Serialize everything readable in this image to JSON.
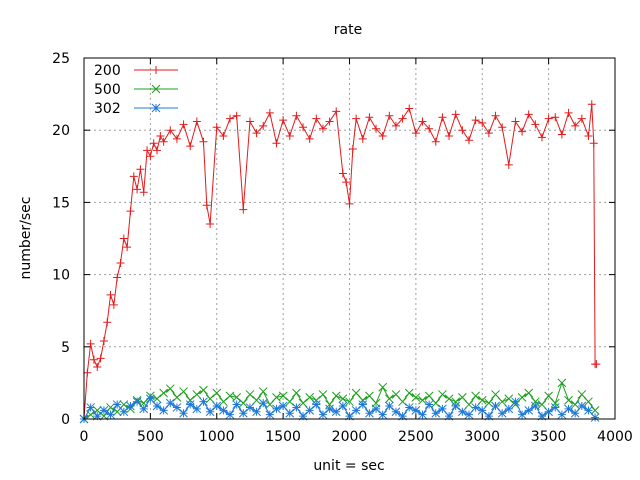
{
  "chart_data": {
    "type": "line",
    "title": "rate",
    "xlabel": "unit = sec",
    "ylabel": "number/sec",
    "xlim": [
      0,
      4000
    ],
    "ylim": [
      0,
      25
    ],
    "x_ticks": [
      0,
      500,
      1000,
      1500,
      2000,
      2500,
      3000,
      3500,
      4000
    ],
    "y_ticks": [
      0,
      5,
      10,
      15,
      20,
      25
    ],
    "grid": true,
    "legend_position": "top-left",
    "series": [
      {
        "name": "200",
        "color": "#e41a1c",
        "marker": "plus",
        "x": [
          0,
          25,
          50,
          75,
          100,
          125,
          150,
          175,
          200,
          225,
          250,
          275,
          300,
          325,
          350,
          375,
          400,
          425,
          450,
          475,
          500,
          525,
          550,
          575,
          600,
          650,
          700,
          750,
          800,
          850,
          900,
          925,
          950,
          1000,
          1050,
          1100,
          1150,
          1200,
          1250,
          1300,
          1350,
          1400,
          1450,
          1500,
          1550,
          1600,
          1650,
          1700,
          1750,
          1800,
          1850,
          1900,
          1950,
          1975,
          2000,
          2025,
          2050,
          2100,
          2150,
          2200,
          2250,
          2300,
          2350,
          2400,
          2450,
          2500,
          2550,
          2600,
          2650,
          2700,
          2750,
          2800,
          2850,
          2900,
          2950,
          3000,
          3050,
          3100,
          3150,
          3200,
          3250,
          3300,
          3350,
          3400,
          3450,
          3500,
          3550,
          3600,
          3650,
          3700,
          3750,
          3800,
          3825,
          3840,
          3850,
          3860
        ],
        "values": [
          0,
          3.2,
          5.2,
          4.1,
          3.6,
          4.2,
          5.4,
          6.7,
          8.6,
          7.9,
          9.8,
          10.8,
          12.5,
          11.9,
          14.4,
          16.8,
          15.9,
          17.3,
          15.7,
          18.6,
          18.2,
          19.1,
          18.6,
          19.6,
          19.2,
          20.0,
          19.4,
          20.4,
          18.9,
          20.6,
          19.2,
          14.8,
          13.5,
          20.2,
          19.6,
          20.8,
          21.0,
          14.5,
          20.6,
          19.8,
          20.3,
          21.2,
          19.1,
          20.7,
          19.6,
          21.0,
          20.2,
          19.4,
          20.8,
          20.1,
          20.6,
          21.3,
          17.0,
          16.4,
          14.9,
          18.7,
          20.8,
          19.4,
          20.9,
          20.1,
          19.6,
          21.0,
          20.3,
          20.8,
          21.5,
          19.8,
          20.6,
          20.1,
          19.2,
          20.9,
          19.6,
          21.1,
          20.0,
          19.3,
          20.7,
          20.5,
          19.8,
          21.0,
          20.2,
          17.6,
          20.6,
          19.9,
          21.1,
          20.4,
          19.5,
          20.8,
          20.9,
          19.7,
          21.2,
          20.3,
          20.8,
          19.6,
          21.8,
          19.1,
          3.8,
          3.8
        ]
      },
      {
        "name": "500",
        "color": "#1ca01c",
        "marker": "cross",
        "x": [
          0,
          50,
          100,
          150,
          200,
          250,
          300,
          350,
          400,
          450,
          500,
          550,
          600,
          650,
          700,
          750,
          800,
          850,
          900,
          950,
          1000,
          1050,
          1100,
          1150,
          1200,
          1250,
          1300,
          1350,
          1400,
          1450,
          1500,
          1550,
          1600,
          1650,
          1700,
          1750,
          1800,
          1850,
          1900,
          1950,
          2000,
          2050,
          2100,
          2150,
          2200,
          2250,
          2300,
          2350,
          2400,
          2450,
          2500,
          2550,
          2600,
          2650,
          2700,
          2750,
          2800,
          2850,
          2900,
          2950,
          3000,
          3050,
          3100,
          3150,
          3200,
          3250,
          3300,
          3350,
          3400,
          3450,
          3500,
          3550,
          3600,
          3650,
          3700,
          3750,
          3800,
          3850
        ],
        "values": [
          0,
          0.3,
          0.6,
          0.2,
          0.8,
          0.5,
          1.0,
          0.7,
          1.3,
          1.1,
          1.6,
          1.4,
          1.8,
          2.1,
          1.5,
          1.9,
          1.3,
          1.7,
          2.0,
          1.4,
          1.8,
          1.2,
          1.6,
          1.5,
          1.1,
          1.7,
          1.3,
          1.9,
          1.0,
          1.5,
          1.6,
          1.2,
          1.8,
          1.1,
          1.5,
          1.3,
          1.7,
          1.0,
          1.6,
          1.4,
          1.2,
          1.8,
          1.3,
          1.6,
          1.1,
          2.2,
          1.4,
          1.7,
          1.2,
          1.8,
          1.5,
          1.3,
          1.6,
          1.1,
          1.7,
          1.4,
          1.2,
          1.5,
          1.0,
          1.6,
          1.3,
          1.1,
          1.7,
          1.2,
          1.4,
          1.0,
          1.5,
          1.8,
          1.2,
          1.0,
          1.6,
          1.1,
          2.5,
          1.3,
          1.0,
          1.7,
          1.2,
          0.6
        ]
      },
      {
        "name": "302",
        "color": "#1e78d8",
        "marker": "star",
        "x": [
          0,
          50,
          100,
          150,
          200,
          250,
          300,
          350,
          400,
          450,
          500,
          550,
          600,
          650,
          700,
          750,
          800,
          850,
          900,
          950,
          1000,
          1050,
          1100,
          1150,
          1200,
          1250,
          1300,
          1350,
          1400,
          1450,
          1500,
          1550,
          1600,
          1650,
          1700,
          1750,
          1800,
          1850,
          1900,
          1950,
          2000,
          2050,
          2100,
          2150,
          2200,
          2250,
          2300,
          2350,
          2400,
          2450,
          2500,
          2550,
          2600,
          2650,
          2700,
          2750,
          2800,
          2850,
          2900,
          2950,
          3000,
          3050,
          3100,
          3150,
          3200,
          3250,
          3300,
          3350,
          3400,
          3450,
          3500,
          3550,
          3600,
          3650,
          3700,
          3750,
          3800,
          3850
        ],
        "values": [
          0,
          0.8,
          0.2,
          0.6,
          0.3,
          1.0,
          0.5,
          0.9,
          1.2,
          0.7,
          1.4,
          0.9,
          0.6,
          1.1,
          0.8,
          0.4,
          1.0,
          0.7,
          1.2,
          0.5,
          0.9,
          0.6,
          0.3,
          1.0,
          0.4,
          0.8,
          0.5,
          1.1,
          0.3,
          0.7,
          0.9,
          0.4,
          0.8,
          0.2,
          0.6,
          1.0,
          0.3,
          0.7,
          0.5,
          0.9,
          0.2,
          0.6,
          1.0,
          0.4,
          0.7,
          0.3,
          0.9,
          0.5,
          0.2,
          0.8,
          0.6,
          0.3,
          1.0,
          0.4,
          0.7,
          0.2,
          0.9,
          0.5,
          0.3,
          0.8,
          0.6,
          0.2,
          0.9,
          0.4,
          0.7,
          1.2,
          0.3,
          0.6,
          0.9,
          0.2,
          0.5,
          0.8,
          0.3,
          0.7,
          0.4,
          0.9,
          0.6,
          0.1
        ]
      }
    ]
  }
}
